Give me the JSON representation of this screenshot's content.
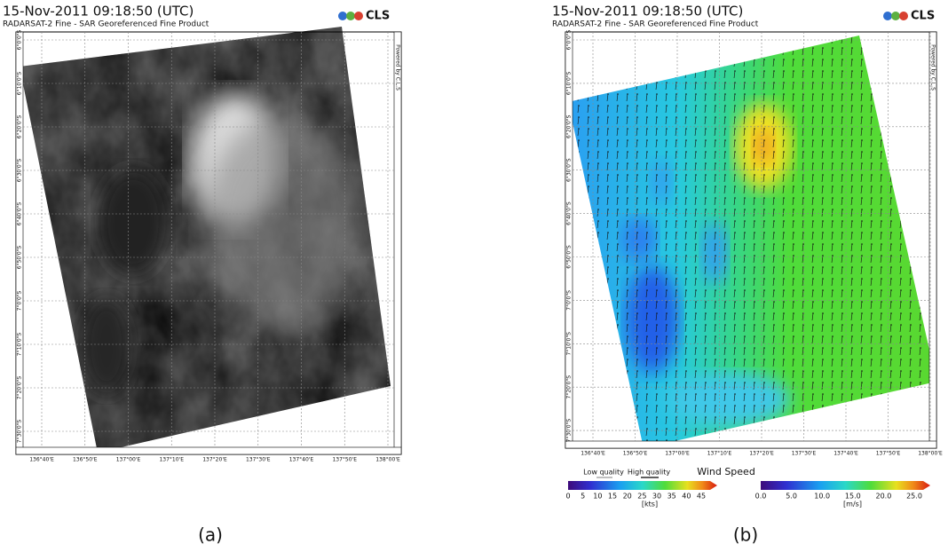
{
  "panels": [
    {
      "title": "15-Nov-2011 09:18:50 (UTC)",
      "subtitle": "RADARSAT-2 Fine - SAR Georeferenced Fine Product",
      "logo": "CLS",
      "credit": "Powered by C.L.S",
      "lat_labels": [
        "6°0'0\"S",
        "6°10'0\"S",
        "6°20'0\"S",
        "6°30'0\"S",
        "6°40'0\"S",
        "6°50'0\"S",
        "7°0'0\"S",
        "7°10'0\"S",
        "7°20'0\"S",
        "7°30'0\"S"
      ],
      "lon_labels": [
        "136°40'E",
        "136°50'E",
        "137°00'E",
        "137°10'E",
        "137°20'E",
        "137°30'E",
        "137°40'E",
        "137°50'E",
        "138°00'E"
      ],
      "caption": "(a)"
    },
    {
      "title": "15-Nov-2011 09:18:50 (UTC)",
      "subtitle": "RADARSAT-2 Fine - SAR Georeferenced Fine Product",
      "logo": "CLS",
      "credit": "Powered by C.L.S",
      "lat_labels": [
        "6°0'0\"S",
        "6°10'0\"S",
        "6°20'0\"S",
        "6°30'0\"S",
        "6°40'0\"S",
        "6°50'0\"S",
        "7°0'0\"S",
        "7°10'0\"S",
        "7°20'0\"S",
        "7°30'0\"S"
      ],
      "lon_labels": [
        "136°40'E",
        "136°50'E",
        "137°00'E",
        "137°10'E",
        "137°20'E",
        "137°30'E",
        "137°40'E",
        "137°50'E",
        "138°00'E"
      ],
      "caption": "(b)",
      "legend": {
        "quality_low": "Low quality",
        "quality_high": "High quality",
        "title": "Wind Speed",
        "kts_ticks": [
          "0",
          "5",
          "10",
          "15",
          "20",
          "25",
          "30",
          "35",
          "40",
          "45"
        ],
        "kts_unit": "[kts]",
        "ms_ticks": [
          "0.0",
          "5.0",
          "10.0",
          "15.0",
          "20.0",
          "25.0"
        ],
        "ms_unit": "[m/s]"
      }
    }
  ]
}
